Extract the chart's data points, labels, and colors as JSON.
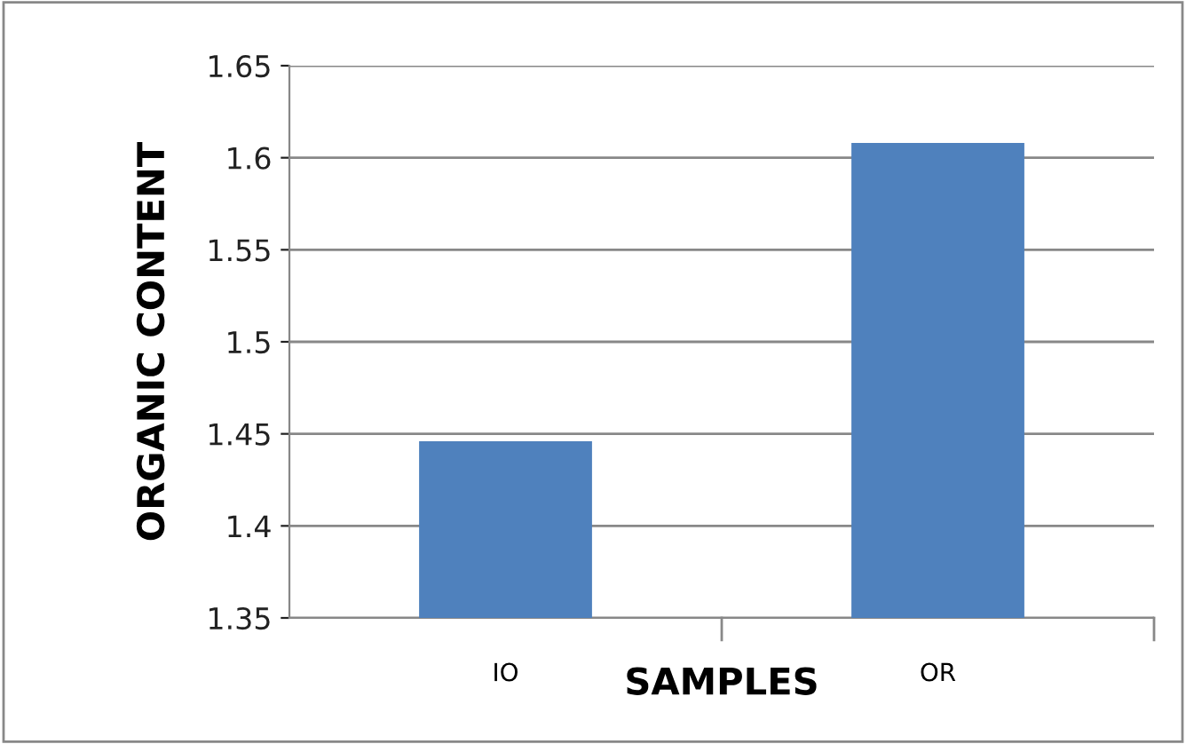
{
  "chart_data": {
    "type": "bar",
    "xlabel": "SAMPLES",
    "ylabel": "ORGANIC CONTENT",
    "categories": [
      "IO",
      "OR"
    ],
    "series": [
      {
        "color": "#4f81bd",
        "values": [
          1.446,
          1.608
        ]
      }
    ],
    "ylim": [
      1.35,
      1.65
    ],
    "yticks": [
      1.35,
      1.4,
      1.45,
      1.5,
      1.55,
      1.6,
      1.65
    ],
    "grid": "y"
  }
}
